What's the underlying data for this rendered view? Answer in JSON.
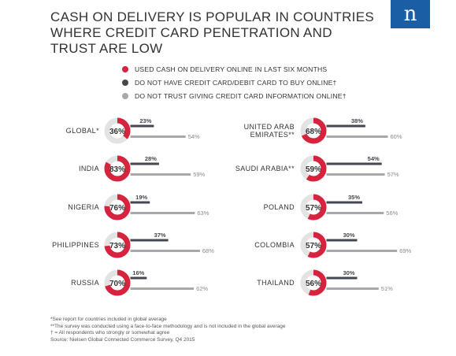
{
  "title": "CASH ON DELIVERY IS POPULAR IN COUNTRIES WHERE CREDIT CARD PENETRATION AND TRUST ARE LOW",
  "brand": {
    "logo_text": "n",
    "color": "#1a5fa6"
  },
  "colors": {
    "cod": "#d6243f",
    "no_card": "#44474f",
    "no_trust": "#a8a8a8",
    "ring_bg": "#e3e3e3"
  },
  "legend": [
    {
      "label": "USED CASH ON DELIVERY ONLINE IN LAST SIX MONTHS",
      "color": "#d6243f"
    },
    {
      "label": "DO NOT HAVE CREDIT CARD/DEBIT CARD TO BUY ONLINE†",
      "color": "#44474f"
    },
    {
      "label": "DO NOT TRUST GIVING CREDIT CARD INFORMATION ONLINE†",
      "color": "#a8a8a8"
    }
  ],
  "chart_data": {
    "type": "bar",
    "series": [
      {
        "name": "USED CASH ON DELIVERY ONLINE IN LAST SIX MONTHS",
        "key": "cod"
      },
      {
        "name": "DO NOT HAVE CREDIT CARD/DEBIT CARD TO BUY ONLINE†",
        "key": "no_card"
      },
      {
        "name": "DO NOT TRUST GIVING CREDIT CARD INFORMATION ONLINE†",
        "key": "no_trust"
      }
    ],
    "countries": [
      {
        "name": "GLOBAL*",
        "cod": 36,
        "no_card": 23,
        "no_trust": 54
      },
      {
        "name": "INDIA",
        "cod": 83,
        "no_card": 28,
        "no_trust": 59
      },
      {
        "name": "NIGERIA",
        "cod": 76,
        "no_card": 19,
        "no_trust": 63
      },
      {
        "name": "PHILIPPINES",
        "cod": 73,
        "no_card": 37,
        "no_trust": 68
      },
      {
        "name": "RUSSIA",
        "cod": 70,
        "no_card": 16,
        "no_trust": 62
      },
      {
        "name": "UNITED ARAB EMIRATES**",
        "cod": 68,
        "no_card": 38,
        "no_trust": 60
      },
      {
        "name": "SAUDI ARABIA**",
        "cod": 59,
        "no_card": 54,
        "no_trust": 57
      },
      {
        "name": "POLAND",
        "cod": 57,
        "no_card": 35,
        "no_trust": 56
      },
      {
        "name": "COLOMBIA",
        "cod": 57,
        "no_card": 30,
        "no_trust": 69
      },
      {
        "name": "THAILAND",
        "cod": 56,
        "no_card": 30,
        "no_trust": 51
      }
    ],
    "unit": "%"
  },
  "footnotes": [
    "*See report for countries included in global average",
    "**The survey was conducted using a face-to-face methodology and is not included in the global average",
    "† = All respondents who strongly or somewhat agree",
    "Source: Nielsen Global Connected Commerce Survey, Q4 2015"
  ]
}
